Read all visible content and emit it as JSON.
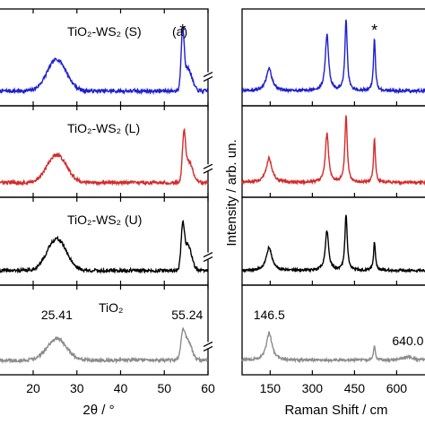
{
  "chart_data": [
    {
      "type": "line",
      "panel_label": "(a)",
      "xlabel": "2θ / °",
      "xlim": [
        12,
        60
      ],
      "x_ticks": [
        20,
        30,
        40,
        50,
        60
      ],
      "x_tick_labels": [
        "20",
        "30",
        "40",
        "50",
        "60"
      ],
      "axis_break_marker": true,
      "series": [
        {
          "name": "TiO₂-WS₂ (S)",
          "color": "#1f1fd0",
          "peaks": [
            [
              25.4,
              0.42,
              2.2
            ],
            [
              54.2,
              0.72,
              0.35
            ],
            [
              55.4,
              0.3,
              0.9
            ]
          ],
          "annotations": [
            {
              "text": "*",
              "x": 54.2
            }
          ]
        },
        {
          "name": "TiO₂-WS₂ (L)",
          "color": "#d42a2a",
          "peaks": [
            [
              25.4,
              0.4,
              2.2
            ],
            [
              54.5,
              0.62,
              0.35
            ],
            [
              55.6,
              0.3,
              0.9
            ]
          ],
          "annotations": []
        },
        {
          "name": "TiO₂-WS₂ (U)",
          "color": "#000000",
          "peaks": [
            [
              25.4,
              0.48,
              2.2
            ],
            [
              54.2,
              0.55,
              0.35
            ],
            [
              55.3,
              0.4,
              0.9
            ]
          ],
          "annotations": []
        },
        {
          "name": "TiO₂",
          "color": "#8c8c8c",
          "peaks": [
            [
              25.4,
              0.32,
              2.2
            ],
            [
              54.2,
              0.28,
              0.4
            ],
            [
              55.24,
              0.32,
              0.9
            ]
          ],
          "annotations": [
            {
              "text": "25.41",
              "x": 25.41
            },
            {
              "text": "55.24",
              "x": 55.24
            }
          ]
        }
      ]
    },
    {
      "type": "line",
      "xlabel": "Raman Shift / cm",
      "ylabel": "Intensity / arb. un.",
      "xlim": [
        50,
        720
      ],
      "x_ticks": [
        150,
        300,
        450,
        600
      ],
      "x_tick_labels": [
        "150",
        "300",
        "450",
        "600"
      ],
      "series": [
        {
          "name": "TiO₂-WS₂ (S)",
          "color": "#1f1fd0",
          "peaks": [
            [
              146,
              0.3,
              12
            ],
            [
              352,
              0.75,
              7
            ],
            [
              420,
              0.95,
              5
            ],
            [
              521,
              0.7,
              4
            ]
          ],
          "annotations": [
            {
              "text": "*",
              "x": 521
            }
          ]
        },
        {
          "name": "TiO₂-WS₂ (L)",
          "color": "#d42a2a",
          "peaks": [
            [
              146,
              0.35,
              12
            ],
            [
              352,
              0.7,
              7
            ],
            [
              420,
              0.95,
              5
            ],
            [
              521,
              0.62,
              4
            ]
          ],
          "annotations": []
        },
        {
          "name": "TiO₂-WS₂ (U)",
          "color": "#000000",
          "peaks": [
            [
              146,
              0.35,
              12
            ],
            [
              352,
              0.6,
              7
            ],
            [
              420,
              0.85,
              5
            ],
            [
              521,
              0.42,
              4
            ]
          ],
          "annotations": []
        },
        {
          "name": "TiO₂",
          "color": "#8c8c8c",
          "peaks": [
            [
              146.5,
              0.4,
              12
            ],
            [
              521,
              0.22,
              4
            ],
            [
              640,
              0.05,
              20
            ]
          ],
          "annotations": [
            {
              "text": "146.5",
              "x": 146.5
            },
            {
              "text": "640.0",
              "x": 640
            }
          ]
        }
      ]
    }
  ]
}
